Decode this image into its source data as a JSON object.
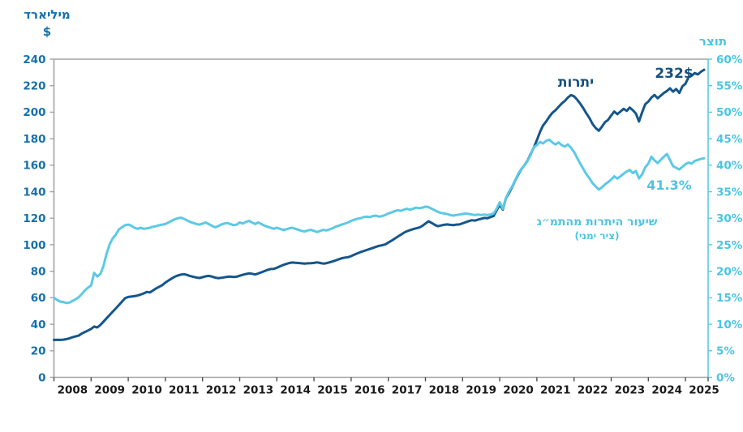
{
  "axis_titles": {
    "left_line1": "מיליארד",
    "left_line2": "$",
    "right": "תוצר"
  },
  "annotations": {
    "reserves_label": "יתרות",
    "reserves_value": "232$",
    "ratio_value": "41.3%",
    "ratio_label": "שיעור היתרות מהתמ״ג",
    "ratio_sublabel": "(ציר ימני)"
  },
  "colors": {
    "reserves_line": "#15568C",
    "ratio_line": "#5CC9E6",
    "left_tick_text": "#1470AD",
    "right_tick_text": "#4FC3E2",
    "x_tick_text": "#1A1A1A",
    "axis_gray": "#A3A3A3",
    "x_axis_tick": "#4D4D4D"
  },
  "chart_data": {
    "type": "line",
    "title": "",
    "grid": false,
    "x_start": "2008-01",
    "x_end": "2025-07",
    "points_per_year": 12,
    "x_tick_labels": [
      "2008",
      "2009",
      "2010",
      "2011",
      "2012",
      "2013",
      "2014",
      "2015",
      "2016",
      "2017",
      "2018",
      "2019",
      "2020",
      "2021",
      "2022",
      "2023",
      "2024",
      "2025"
    ],
    "left_axis": {
      "title": "מיליארד $",
      "min": 0,
      "max": 240,
      "step": 20,
      "tick_labels": [
        "0",
        "20",
        "40",
        "60",
        "80",
        "100",
        "120",
        "140",
        "160",
        "180",
        "200",
        "220",
        "240"
      ]
    },
    "right_axis": {
      "title": "תוצר",
      "min": 0,
      "max": 60,
      "step": 5,
      "tick_labels": [
        "0%",
        "5%",
        "10%",
        "15%",
        "20%",
        "25%",
        "30%",
        "35%",
        "40%",
        "45%",
        "50%",
        "55%",
        "60%"
      ]
    },
    "series": [
      {
        "name": "יתרות",
        "axis": "left",
        "color": "#15568C",
        "end_value_label": "232$",
        "values": [
          28.2,
          28.3,
          28.2,
          28.4,
          28.8,
          29.4,
          30.2,
          30.8,
          31.4,
          33.0,
          34.2,
          35.3,
          36.5,
          38.3,
          37.6,
          39.5,
          42.0,
          44.5,
          47.0,
          49.5,
          52.0,
          54.5,
          57.2,
          59.7,
          60.6,
          60.9,
          61.2,
          61.7,
          62.4,
          63.3,
          64.4,
          64.0,
          65.5,
          67.0,
          68.3,
          69.5,
          71.5,
          73.0,
          74.5,
          75.8,
          76.8,
          77.5,
          77.8,
          77.2,
          76.4,
          75.8,
          75.3,
          74.9,
          75.5,
          76.2,
          76.5,
          76.0,
          75.3,
          74.8,
          75.0,
          75.4,
          75.8,
          76.0,
          75.7,
          75.9,
          76.6,
          77.3,
          77.9,
          78.4,
          78.1,
          77.6,
          78.3,
          79.2,
          80.1,
          81.0,
          81.7,
          81.8,
          82.6,
          83.7,
          84.7,
          85.5,
          86.2,
          86.6,
          86.4,
          86.2,
          86.0,
          85.8,
          86.0,
          86.1,
          86.3,
          86.7,
          86.2,
          85.8,
          86.1,
          86.7,
          87.4,
          88.2,
          89.0,
          89.8,
          90.3,
          90.6,
          91.4,
          92.5,
          93.5,
          94.4,
          95.2,
          96.0,
          96.8,
          97.6,
          98.4,
          99.2,
          99.6,
          100.2,
          101.6,
          103.0,
          104.5,
          106.0,
          107.5,
          109.0,
          110.2,
          111.0,
          111.8,
          112.4,
          113.0,
          114.2,
          116.0,
          117.7,
          116.5,
          115.0,
          114.0,
          114.5,
          115.0,
          115.3,
          115.0,
          114.8,
          115.2,
          115.3,
          116.2,
          117.0,
          117.8,
          118.5,
          118.2,
          119.0,
          119.6,
          120.2,
          120.0,
          120.8,
          121.7,
          126.0,
          130.0,
          126.5,
          135.0,
          139.0,
          143.5,
          148.5,
          153.0,
          157.0,
          160.0,
          163.5,
          168.5,
          173.3,
          179.0,
          185.0,
          190.0,
          193.0,
          196.5,
          199.5,
          201.5,
          204.0,
          206.5,
          208.5,
          211.0,
          212.9,
          212.0,
          209.5,
          206.5,
          203.0,
          199.0,
          195.5,
          191.0,
          188.0,
          186.0,
          189.0,
          192.5,
          194.2,
          197.5,
          200.5,
          198.5,
          200.5,
          202.5,
          201.0,
          203.5,
          201.5,
          199.0,
          193.0,
          200.0,
          206.0,
          208.0,
          211.0,
          213.0,
          210.5,
          212.5,
          214.5,
          216.0,
          218.0,
          215.5,
          217.5,
          214.5,
          219.5,
          221.5,
          226.5,
          227.5,
          229.5,
          228.5,
          230.5,
          232.0
        ]
      },
      {
        "name": "שיעור היתרות מהתמ״ג (ציר ימני)",
        "axis": "right",
        "color": "#5CC9E6",
        "end_value_label": "41.3%",
        "values": [
          15.0,
          14.6,
          14.3,
          14.2,
          14.0,
          14.1,
          14.4,
          14.7,
          15.1,
          15.7,
          16.4,
          16.9,
          17.3,
          19.7,
          19.0,
          19.5,
          21.0,
          23.3,
          25.1,
          26.2,
          26.9,
          27.9,
          28.3,
          28.7,
          28.8,
          28.6,
          28.2,
          28.0,
          28.2,
          28.0,
          28.1,
          28.2,
          28.4,
          28.5,
          28.7,
          28.8,
          28.9,
          29.2,
          29.5,
          29.8,
          30.0,
          30.1,
          29.9,
          29.6,
          29.3,
          29.1,
          28.9,
          28.8,
          29.0,
          29.2,
          28.9,
          28.6,
          28.3,
          28.5,
          28.8,
          29.0,
          29.1,
          28.9,
          28.7,
          28.8,
          29.2,
          29.0,
          29.3,
          29.5,
          29.2,
          28.9,
          29.2,
          28.9,
          28.6,
          28.4,
          28.2,
          28.0,
          28.2,
          28.0,
          27.8,
          27.9,
          28.1,
          28.2,
          28.0,
          27.8,
          27.6,
          27.5,
          27.7,
          27.8,
          27.6,
          27.4,
          27.6,
          27.8,
          27.7,
          27.9,
          28.1,
          28.4,
          28.6,
          28.8,
          29.0,
          29.2,
          29.5,
          29.7,
          29.9,
          30.0,
          30.2,
          30.3,
          30.2,
          30.4,
          30.5,
          30.3,
          30.4,
          30.6,
          30.9,
          31.1,
          31.3,
          31.5,
          31.4,
          31.6,
          31.8,
          31.6,
          31.8,
          32.0,
          31.9,
          32.0,
          32.2,
          32.1,
          31.8,
          31.5,
          31.2,
          31.0,
          30.9,
          30.8,
          30.6,
          30.5,
          30.6,
          30.7,
          30.8,
          30.9,
          30.8,
          30.7,
          30.6,
          30.7,
          30.6,
          30.7,
          30.6,
          30.7,
          30.9,
          31.8,
          33.0,
          31.8,
          33.8,
          35.0,
          36.0,
          37.2,
          38.4,
          39.3,
          40.0,
          40.8,
          42.0,
          43.4,
          43.8,
          44.4,
          44.1,
          44.6,
          44.8,
          44.3,
          43.9,
          44.3,
          43.8,
          43.5,
          43.9,
          43.3,
          42.5,
          41.4,
          40.3,
          39.3,
          38.3,
          37.5,
          36.6,
          36.0,
          35.4,
          35.8,
          36.4,
          36.8,
          37.3,
          37.9,
          37.5,
          37.9,
          38.4,
          38.8,
          39.1,
          38.5,
          38.9,
          37.5,
          38.3,
          39.6,
          40.3,
          41.6,
          40.9,
          40.4,
          41.0,
          41.6,
          42.1,
          41.0,
          39.8,
          39.5,
          39.2,
          39.7,
          40.2,
          40.5,
          40.3,
          40.8,
          41.0,
          41.2,
          41.3
        ]
      }
    ]
  }
}
